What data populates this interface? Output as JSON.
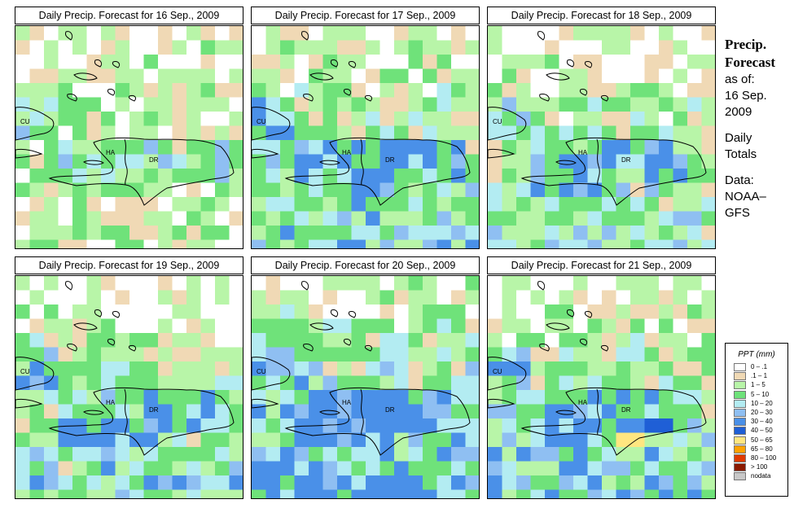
{
  "panels": [
    {
      "title": "Daily Precip. Forecast for  16 Sep., 2009",
      "seed": 3,
      "bias": 0.0
    },
    {
      "title": "Daily Precip. Forecast for  17 Sep., 2009",
      "seed": 7,
      "bias": 0.9
    },
    {
      "title": "Daily Precip. Forecast for  18 Sep., 2009",
      "seed": 11,
      "bias": 0.6
    },
    {
      "title": "Daily Precip. Forecast for  19 Sep., 2009",
      "seed": 19,
      "bias": 0.7
    },
    {
      "title": "Daily Precip. Forecast for  20 Sep., 2009",
      "seed": 23,
      "bias": 1.3
    },
    {
      "title": "Daily Precip. Forecast for  21 Sep., 2009",
      "seed": 29,
      "bias": 0.9
    }
  ],
  "map_labels": {
    "cu": "CU",
    "ha": "HA",
    "dr": "DR"
  },
  "side": {
    "line1": "Precip.",
    "line2": "Forecast",
    "line3": "as of:",
    "line4": "16 Sep.",
    "line5": "2009",
    "line6": "Daily",
    "line7": "Totals",
    "line8": "Data:",
    "line9": "NOAA–",
    "line10": "GFS"
  },
  "legend": {
    "title": "PPT (mm)",
    "items": [
      {
        "label": "0 – .1",
        "color": "#ffffff"
      },
      {
        "label": ".1 – 1",
        "color": "#f0d9b5"
      },
      {
        "label": "1 – 5",
        "color": "#b8f5a8"
      },
      {
        "label": "5 – 10",
        "color": "#6fe27a"
      },
      {
        "label": "10 – 20",
        "color": "#b3ecf2"
      },
      {
        "label": "20 – 30",
        "color": "#8fbff2"
      },
      {
        "label": "30 – 40",
        "color": "#4a90e8"
      },
      {
        "label": "40 – 50",
        "color": "#1f5fd6"
      },
      {
        "label": "50 – 65",
        "color": "#ffe680"
      },
      {
        "label": "65 – 80",
        "color": "#ffa200"
      },
      {
        "label": "80 – 100",
        "color": "#e03a00"
      },
      {
        "label": "> 100",
        "color": "#8b1a00"
      },
      {
        "label": "nodata",
        "color": "#c8c8c8"
      }
    ]
  }
}
